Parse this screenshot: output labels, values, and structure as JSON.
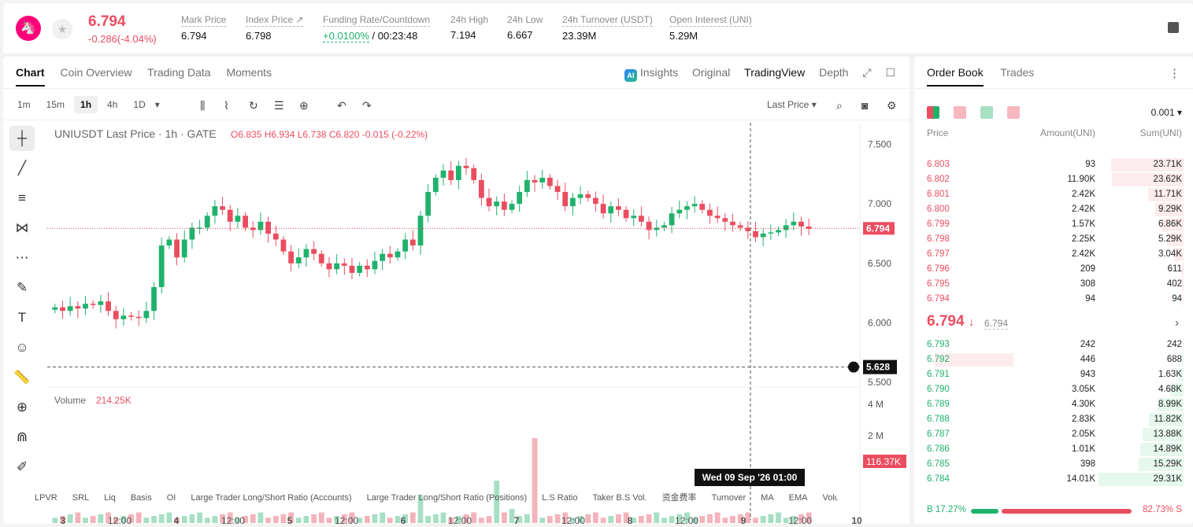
{
  "header": {
    "logo": "🦄",
    "last_price": "6.794",
    "change": "-0.286(-4.04%)",
    "stats": [
      {
        "label": "Mark Price",
        "value": "6.794"
      },
      {
        "label": "Index Price ↗",
        "value": "6.798"
      },
      {
        "label": "Funding Rate/Countdown",
        "value_green": "+0.0100%",
        "value": "/ 00:23:48"
      },
      {
        "label": "24h High",
        "value": "7.194"
      },
      {
        "label": "24h Low",
        "value": "6.667"
      },
      {
        "label": "24h Turnover (USDT)",
        "value": "23.39M"
      },
      {
        "label": "Open Interest (UNI)",
        "value": "5.29M"
      }
    ]
  },
  "chart_tabs": [
    "Chart",
    "Coin Overview",
    "Trading Data",
    "Moments"
  ],
  "view_tabs": {
    "ai_badge": "AI",
    "insights": "Insights",
    "original": "Original",
    "tradingview": "TradingView",
    "depth": "Depth"
  },
  "timeframes": [
    "1m",
    "15m",
    "1h",
    "4h",
    "1D"
  ],
  "price_type": "Last Price",
  "chart_data": {
    "type": "candlestick",
    "title": "UNIUSDT Last Price · 1h · GATE",
    "ohlc_label": {
      "o": "6.835",
      "h": "6.934",
      "l": "6.738",
      "c": "6.820",
      "chg": "-0.015 (-0.22%)"
    },
    "ylim": [
      5.5,
      7.55
    ],
    "y_ticks": [
      "7.500",
      "7.000",
      "6.500",
      "6.000",
      "5.500"
    ],
    "x_ticks": [
      "3",
      "12:00",
      "4",
      "12:00",
      "5",
      "12:00",
      "6",
      "12:00",
      "7",
      "12:00",
      "8",
      "12:00",
      "9",
      "12:00",
      "10"
    ],
    "last_price_label": "6.794",
    "crosshair_price": "5.628",
    "crosshair_time": "Wed 09 Sep '26   01:00",
    "volume_label": "Volume",
    "volume_value": "214.25K",
    "volume_ticks": [
      "4 M",
      "2 M"
    ],
    "volume_last": "116.37K",
    "close_path": [
      6.13,
      6.1,
      6.14,
      6.12,
      6.16,
      6.15,
      6.18,
      6.1,
      6.03,
      6.06,
      6.05,
      6.04,
      6.1,
      6.3,
      6.65,
      6.7,
      6.55,
      6.7,
      6.8,
      6.8,
      6.9,
      6.98,
      6.95,
      6.85,
      6.9,
      6.8,
      6.78,
      6.85,
      6.75,
      6.7,
      6.6,
      6.5,
      6.55,
      6.62,
      6.58,
      6.5,
      6.45,
      6.5,
      6.48,
      6.42,
      6.48,
      6.45,
      6.52,
      6.58,
      6.55,
      6.6,
      6.7,
      6.65,
      6.9,
      7.1,
      7.22,
      7.28,
      7.2,
      7.32,
      7.3,
      7.2,
      7.05,
      6.98,
      7.02,
      6.95,
      7.0,
      7.1,
      7.2,
      7.18,
      7.22,
      7.15,
      7.1,
      6.98,
      7.05,
      7.08,
      7.05,
      7.0,
      6.92,
      6.98,
      6.95,
      6.88,
      6.9,
      6.85,
      6.78,
      6.8,
      6.82,
      6.92,
      6.95,
      6.98,
      7.0,
      6.95,
      6.9,
      6.88,
      6.85,
      6.82,
      6.8,
      6.77,
      6.72,
      6.75,
      6.76,
      6.78,
      6.82,
      6.85,
      6.81,
      6.79
    ]
  },
  "bottom_indicators": [
    "LPVR",
    "SRL",
    "Liq",
    "Basis",
    "OI",
    "Large Trader Long/Short Ratio (Accounts)",
    "Large Trader Long/Short Ratio (Positions)",
    "L.S Ratio",
    "Taker B.S Vol.",
    "资金费率",
    "Turnover",
    "MA",
    "EMA",
    "Volu"
  ],
  "orderbook": {
    "tabs": [
      "Order Book",
      "Trades"
    ],
    "precision": "0.001",
    "headers": [
      "Price",
      "Amount(UNI)",
      "Sum(UNI)"
    ],
    "asks": [
      {
        "price": "6.803",
        "amount": "93",
        "sum": "23.71K",
        "depth": 0.85,
        "abar": 0
      },
      {
        "price": "6.802",
        "amount": "11.90K",
        "sum": "23.62K",
        "depth": 0.84,
        "abar": 0
      },
      {
        "price": "6.801",
        "amount": "2.42K",
        "sum": "11.71K",
        "depth": 0.42,
        "abar": 0
      },
      {
        "price": "6.800",
        "amount": "2.42K",
        "sum": "9.29K",
        "depth": 0.33,
        "abar": 0
      },
      {
        "price": "6.799",
        "amount": "1.57K",
        "sum": "6.86K",
        "depth": 0.25,
        "abar": 0
      },
      {
        "price": "6.798",
        "amount": "2.25K",
        "sum": "5.29K",
        "depth": 0.19,
        "abar": 0
      },
      {
        "price": "6.797",
        "amount": "2.42K",
        "sum": "3.04K",
        "depth": 0.11,
        "abar": 0
      },
      {
        "price": "6.796",
        "amount": "209",
        "sum": "611",
        "depth": 0.02,
        "abar": 0
      },
      {
        "price": "6.795",
        "amount": "308",
        "sum": "402",
        "depth": 0.015,
        "abar": 0
      },
      {
        "price": "6.794",
        "amount": "94",
        "sum": "94",
        "depth": 0.005,
        "abar": 0
      }
    ],
    "mid_price": "6.794",
    "mid_arrow": "↓",
    "mid_sub": "6.794",
    "bids": [
      {
        "price": "6.793",
        "amount": "242",
        "sum": "242",
        "depth": 0.01,
        "abar": 0
      },
      {
        "price": "6.792",
        "amount": "446",
        "sum": "688",
        "depth": 0.02,
        "abar": 1
      },
      {
        "price": "6.791",
        "amount": "943",
        "sum": "1.63K",
        "depth": 0.06,
        "abar": 0
      },
      {
        "price": "6.790",
        "amount": "3.05K",
        "sum": "4.68K",
        "depth": 0.16,
        "abar": 0
      },
      {
        "price": "6.789",
        "amount": "4.30K",
        "sum": "8.99K",
        "depth": 0.31,
        "abar": 0
      },
      {
        "price": "6.788",
        "amount": "2.83K",
        "sum": "11.82K",
        "depth": 0.41,
        "abar": 0
      },
      {
        "price": "6.787",
        "amount": "2.05K",
        "sum": "13.88K",
        "depth": 0.48,
        "abar": 0
      },
      {
        "price": "6.786",
        "amount": "1.01K",
        "sum": "14.89K",
        "depth": 0.51,
        "abar": 0
      },
      {
        "price": "6.785",
        "amount": "398",
        "sum": "15.29K",
        "depth": 0.53,
        "abar": 0
      },
      {
        "price": "6.784",
        "amount": "14.01K",
        "sum": "29.31K",
        "depth": 1.0,
        "abar": 0
      }
    ],
    "buy_ratio": "17.27%",
    "sell_ratio": "82.73%",
    "buy_label": "B",
    "sell_label": "S",
    "buy_fraction": 0.1727
  },
  "colors": {
    "up": "#20b26c",
    "down": "#ea4d5f"
  }
}
